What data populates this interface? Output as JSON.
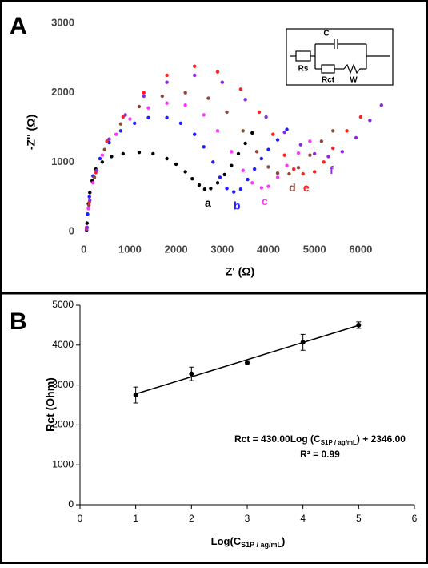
{
  "chart_data": [
    {
      "type": "scatter",
      "panel_label": "A",
      "x_label": "Z' (Ω)",
      "y_label": "-Z'' (Ω)",
      "xlim": [
        -100,
        6800
      ],
      "ylim": [
        -100,
        3100
      ],
      "xticks": [
        0,
        1000,
        2000,
        3000,
        4000,
        5000,
        6000
      ],
      "yticks": [
        0,
        1000,
        2000,
        3000
      ],
      "inset": {
        "labels": [
          "C",
          "Rs",
          "Rct",
          "W"
        ]
      },
      "series": [
        {
          "name": "a",
          "color": "#000000",
          "x": [
            60,
            70,
            80,
            100,
            130,
            180,
            260,
            400,
            600,
            850,
            1200,
            1500,
            1800,
            2000,
            2200,
            2350,
            2500,
            2620,
            2750,
            2900,
            3050,
            3200,
            3350,
            3500,
            3650
          ],
          "values": [
            20,
            120,
            250,
            400,
            560,
            730,
            900,
            1000,
            1080,
            1120,
            1140,
            1120,
            1050,
            970,
            860,
            760,
            670,
            610,
            620,
            700,
            820,
            950,
            1120,
            1270,
            1420
          ]
        },
        {
          "name": "b",
          "color": "#1f1fff",
          "x": [
            60,
            80,
            120,
            200,
            350,
            550,
            800,
            1100,
            1400,
            1800,
            2100,
            2400,
            2600,
            2800,
            2950,
            3100,
            3250,
            3400,
            3550,
            3700,
            3850,
            4000,
            4200,
            4400
          ],
          "values": [
            30,
            250,
            500,
            800,
            1050,
            1280,
            1450,
            1560,
            1640,
            1640,
            1560,
            1400,
            1220,
            1000,
            780,
            620,
            570,
            610,
            750,
            900,
            1050,
            1180,
            1320,
            1470
          ]
        },
        {
          "name": "c",
          "color": "#ff33ff",
          "x": [
            60,
            100,
            200,
            400,
            700,
            1000,
            1400,
            1800,
            2200,
            2600,
            2900,
            3200,
            3450,
            3650,
            3850,
            4000,
            4200,
            4400,
            4650,
            4900
          ],
          "values": [
            40,
            330,
            700,
            1100,
            1400,
            1620,
            1780,
            1850,
            1820,
            1680,
            1450,
            1150,
            880,
            700,
            630,
            650,
            780,
            950,
            1130,
            1300
          ]
        },
        {
          "name": "d",
          "color": "#8b4a3c",
          "x": [
            60,
            110,
            230,
            450,
            800,
            1200,
            1700,
            2200,
            2700,
            3100,
            3450,
            3750,
            4000,
            4200,
            4450,
            4650,
            4900,
            5150,
            5400
          ],
          "values": [
            50,
            380,
            780,
            1180,
            1550,
            1800,
            1950,
            2000,
            1920,
            1720,
            1450,
            1150,
            930,
            840,
            830,
            920,
            1100,
            1300,
            1450
          ]
        },
        {
          "name": "e",
          "color": "#ff2020",
          "x": [
            60,
            120,
            260,
            500,
            850,
            1300,
            1800,
            2400,
            2900,
            3400,
            3800,
            4100,
            4350,
            4550,
            4750,
            5000,
            5200,
            5400,
            5700,
            6000
          ],
          "values": [
            60,
            420,
            850,
            1300,
            1650,
            2000,
            2250,
            2380,
            2300,
            2050,
            1720,
            1400,
            1100,
            900,
            830,
            860,
            1000,
            1200,
            1450,
            1650
          ]
        },
        {
          "name": "f",
          "color": "#8a2be2",
          "x": [
            70,
            130,
            280,
            550,
            900,
            1300,
            1800,
            2400,
            3000,
            3500,
            3950,
            4350,
            4700,
            5000,
            5300,
            5600,
            5900,
            6200,
            6450
          ],
          "values": [
            60,
            450,
            880,
            1330,
            1680,
            1950,
            2150,
            2250,
            2150,
            1900,
            1650,
            1430,
            1250,
            1120,
            1080,
            1150,
            1350,
            1600,
            1820
          ]
        }
      ]
    },
    {
      "type": "scatter",
      "panel_label": "B",
      "y_label": "Rct (Ohm)",
      "x_label_parts": [
        "Log(C",
        "S1P / ag/mL",
        ")"
      ],
      "equation_parts": [
        "Rct = 430.00Log (C",
        "S1P / ag/mL",
        ") + 2346.00"
      ],
      "r_squared": "R² = 0.99",
      "xlim": [
        0,
        6
      ],
      "ylim": [
        0,
        5000
      ],
      "xticks": [
        0,
        1,
        2,
        3,
        4,
        5,
        6
      ],
      "yticks": [
        0,
        1000,
        2000,
        3000,
        4000,
        5000
      ],
      "series": [
        {
          "color": "#000000",
          "x": [
            1,
            2,
            3,
            4,
            5
          ],
          "values": [
            2750,
            3280,
            3560,
            4070,
            4500
          ],
          "errors": [
            200,
            170,
            50,
            200,
            80
          ]
        }
      ],
      "fit": {
        "x": [
          1,
          5
        ],
        "values": [
          2776,
          4496
        ]
      }
    }
  ]
}
